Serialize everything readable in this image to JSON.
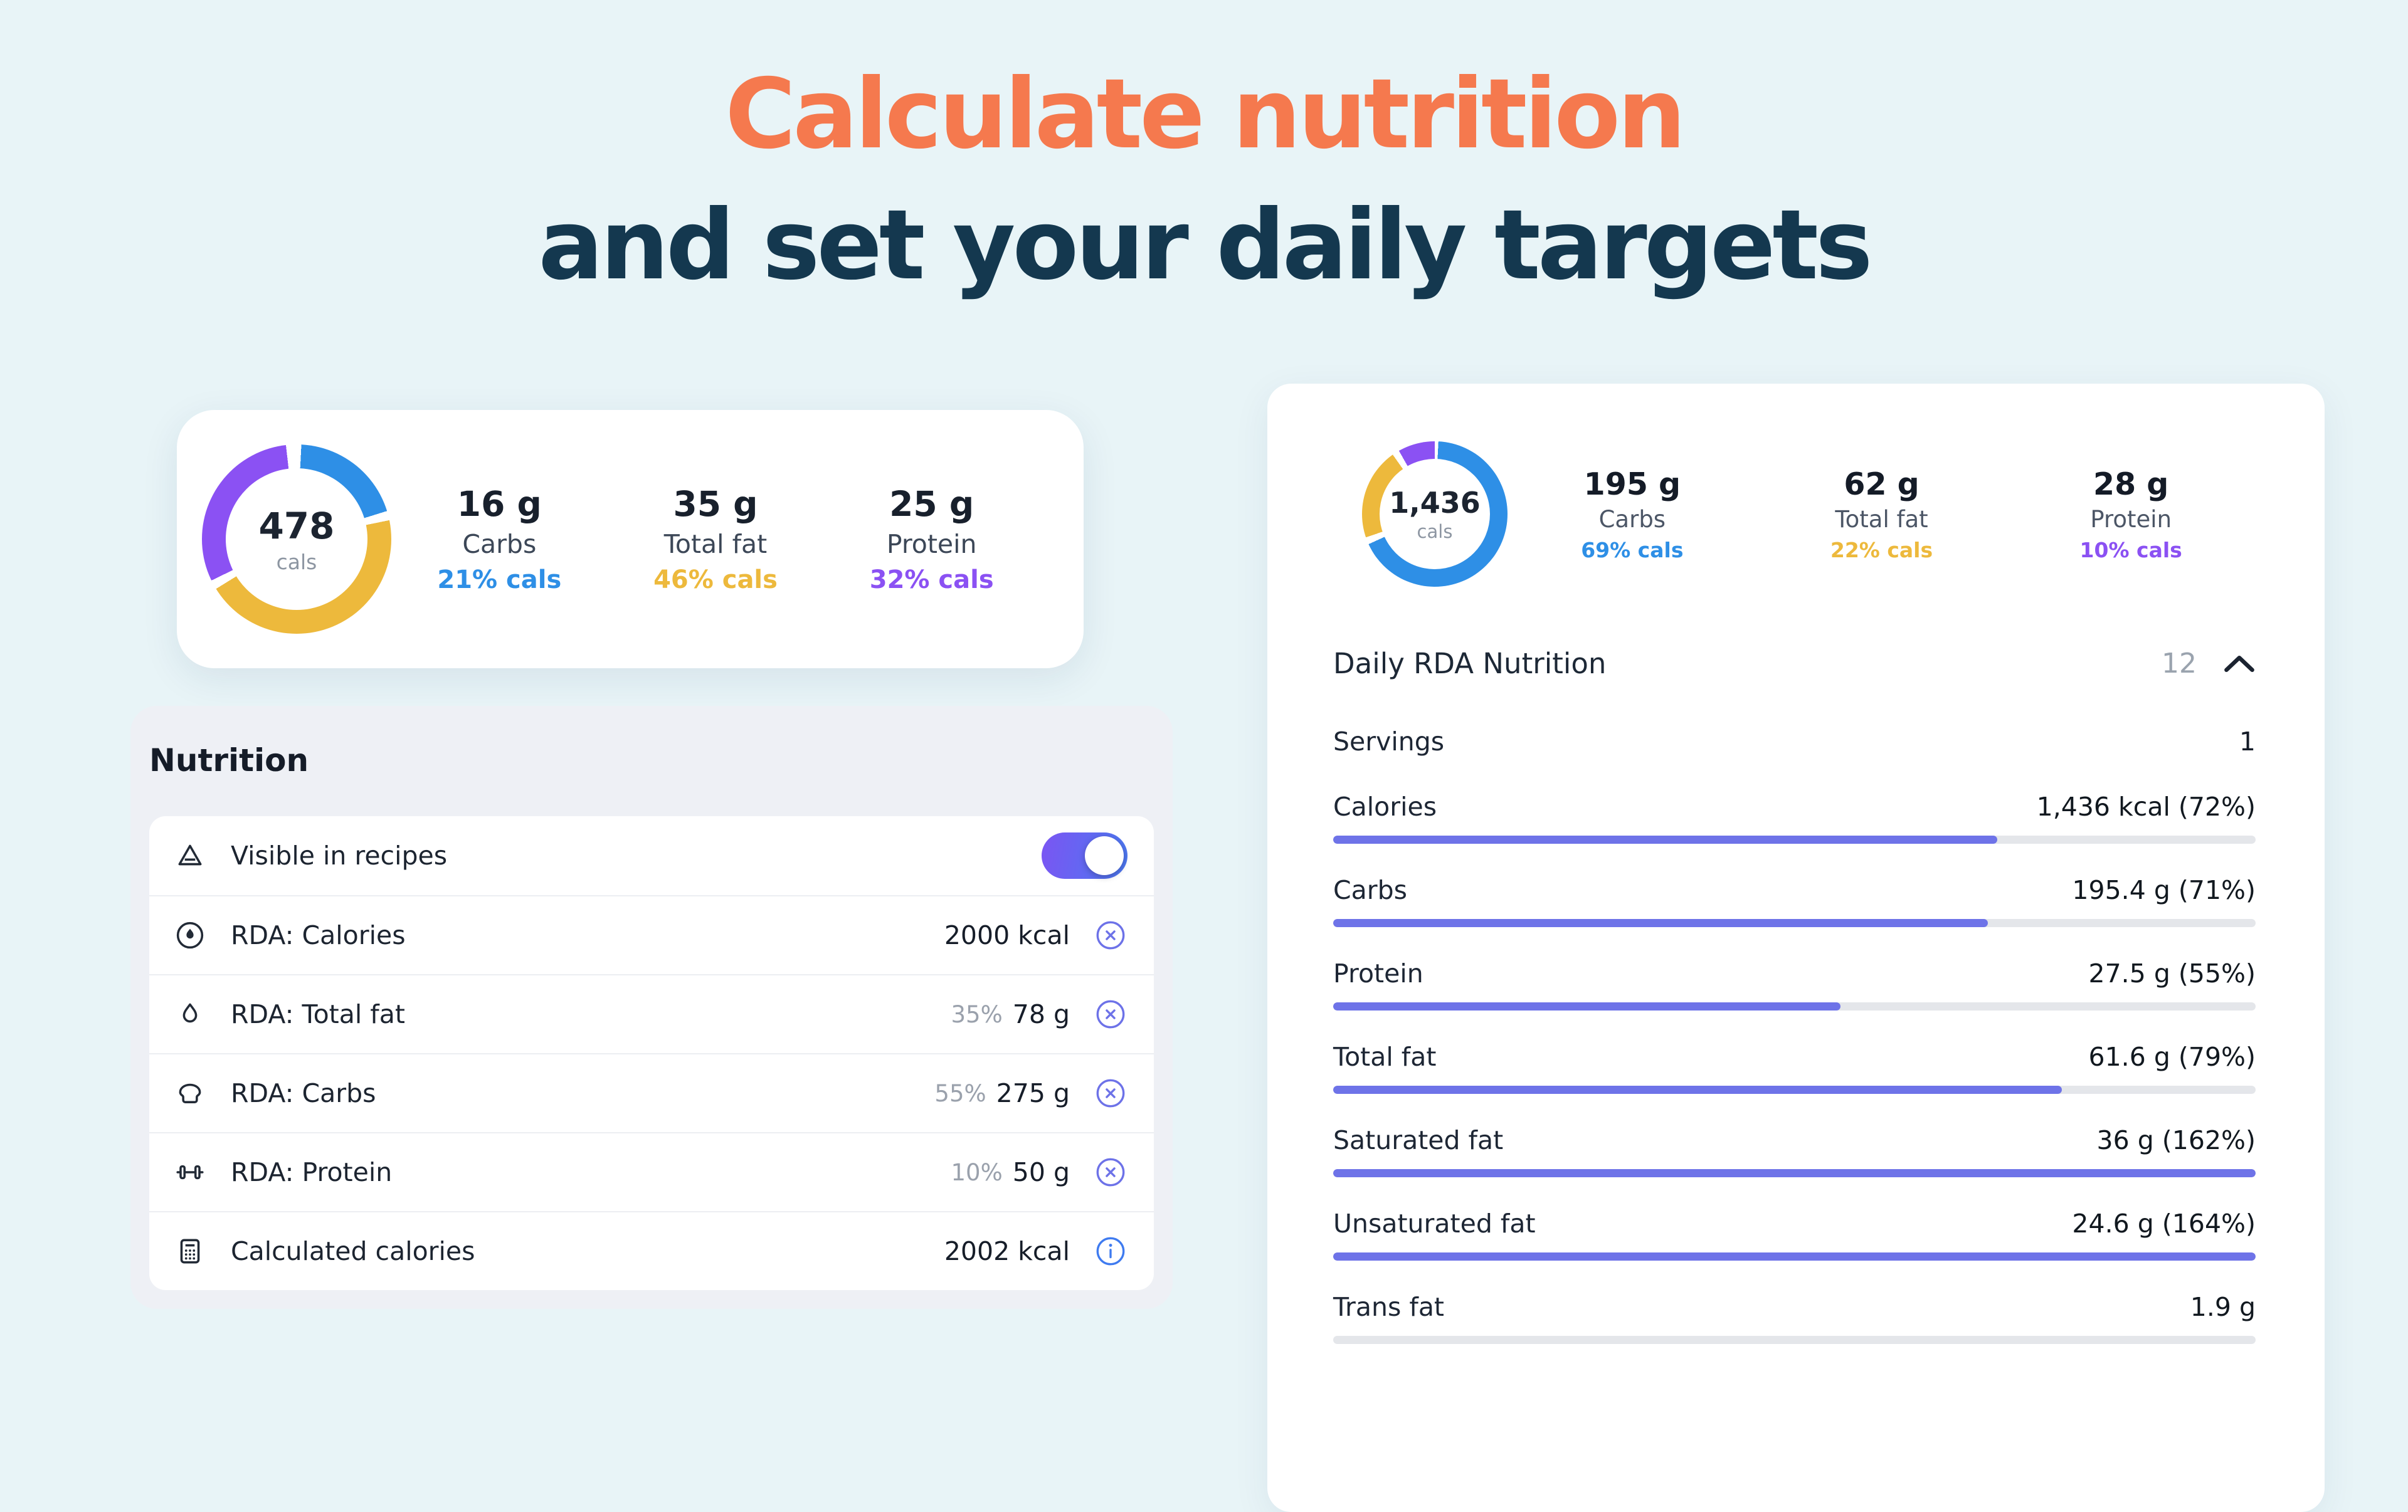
{
  "theme": {
    "accent_orange": "#f5794e",
    "heading_navy": "#14384f",
    "carbs_blue": "#2e8fe6",
    "fat_yellow": "#edb93c",
    "protein_purple": "#8b51f3",
    "progress_indigo": "#6e73e8"
  },
  "heading": {
    "line1": "Calculate nutrition",
    "line2": "and set your daily targets"
  },
  "summary_card": {
    "donut": {
      "value": "478",
      "unit": "cals",
      "segments": [
        {
          "name": "carbs",
          "pct": 21,
          "color": "#2e8fe6"
        },
        {
          "name": "total_fat",
          "pct": 46,
          "color": "#edb93c"
        },
        {
          "name": "protein",
          "pct": 32,
          "color": "#8b51f3"
        }
      ]
    },
    "macros": [
      {
        "amount": "16 g",
        "label": "Carbs",
        "pct": "21% cals",
        "color": "#2e8fe6"
      },
      {
        "amount": "35 g",
        "label": "Total fat",
        "pct": "46% cals",
        "color": "#edb93c"
      },
      {
        "amount": "25 g",
        "label": "Protein",
        "pct": "32% cals",
        "color": "#8b51f3"
      }
    ]
  },
  "nutrition_panel": {
    "title": "Nutrition",
    "rows": [
      {
        "label": "Visible in recipes",
        "type": "toggle",
        "on": true
      },
      {
        "label": "RDA: Calories",
        "value": "2000 kcal"
      },
      {
        "label": "RDA: Total fat",
        "pct": "35%",
        "value": "78 g"
      },
      {
        "label": "RDA: Carbs",
        "pct": "55%",
        "value": "275 g"
      },
      {
        "label": "RDA: Protein",
        "pct": "10%",
        "value": "50 g"
      },
      {
        "label": "Calculated calories",
        "value": "2002 kcal"
      }
    ]
  },
  "rda_card": {
    "donut": {
      "value": "1,436",
      "unit": "cals",
      "segments": [
        {
          "name": "carbs",
          "pct": 69,
          "color": "#2e8fe6"
        },
        {
          "name": "total_fat",
          "pct": 22,
          "color": "#edb93c"
        },
        {
          "name": "protein",
          "pct": 10,
          "color": "#8b51f3"
        }
      ]
    },
    "macros": [
      {
        "amount": "195 g",
        "label": "Carbs",
        "pct": "69% cals",
        "color": "#2e8fe6"
      },
      {
        "amount": "62 g",
        "label": "Total fat",
        "pct": "22% cals",
        "color": "#edb93c"
      },
      {
        "amount": "28 g",
        "label": "Protein",
        "pct": "10% cals",
        "color": "#8b51f3"
      }
    ],
    "section": {
      "title": "Daily RDA Nutrition",
      "count": "12"
    },
    "servings": {
      "label": "Servings",
      "value": "1"
    },
    "nutrients": [
      {
        "label": "Calories",
        "value": "1,436 kcal (72%)",
        "pct": 72
      },
      {
        "label": "Carbs",
        "value": "195.4 g (71%)",
        "pct": 71
      },
      {
        "label": "Protein",
        "value": "27.5 g (55%)",
        "pct": 55
      },
      {
        "label": "Total fat",
        "value": "61.6 g (79%)",
        "pct": 79
      },
      {
        "label": "Saturated fat",
        "value": "36 g (162%)",
        "pct": 100
      },
      {
        "label": "Unsaturated fat",
        "value": "24.6 g (164%)",
        "pct": 100
      },
      {
        "label": "Trans fat",
        "value": "1.9 g",
        "pct": 0
      }
    ]
  }
}
